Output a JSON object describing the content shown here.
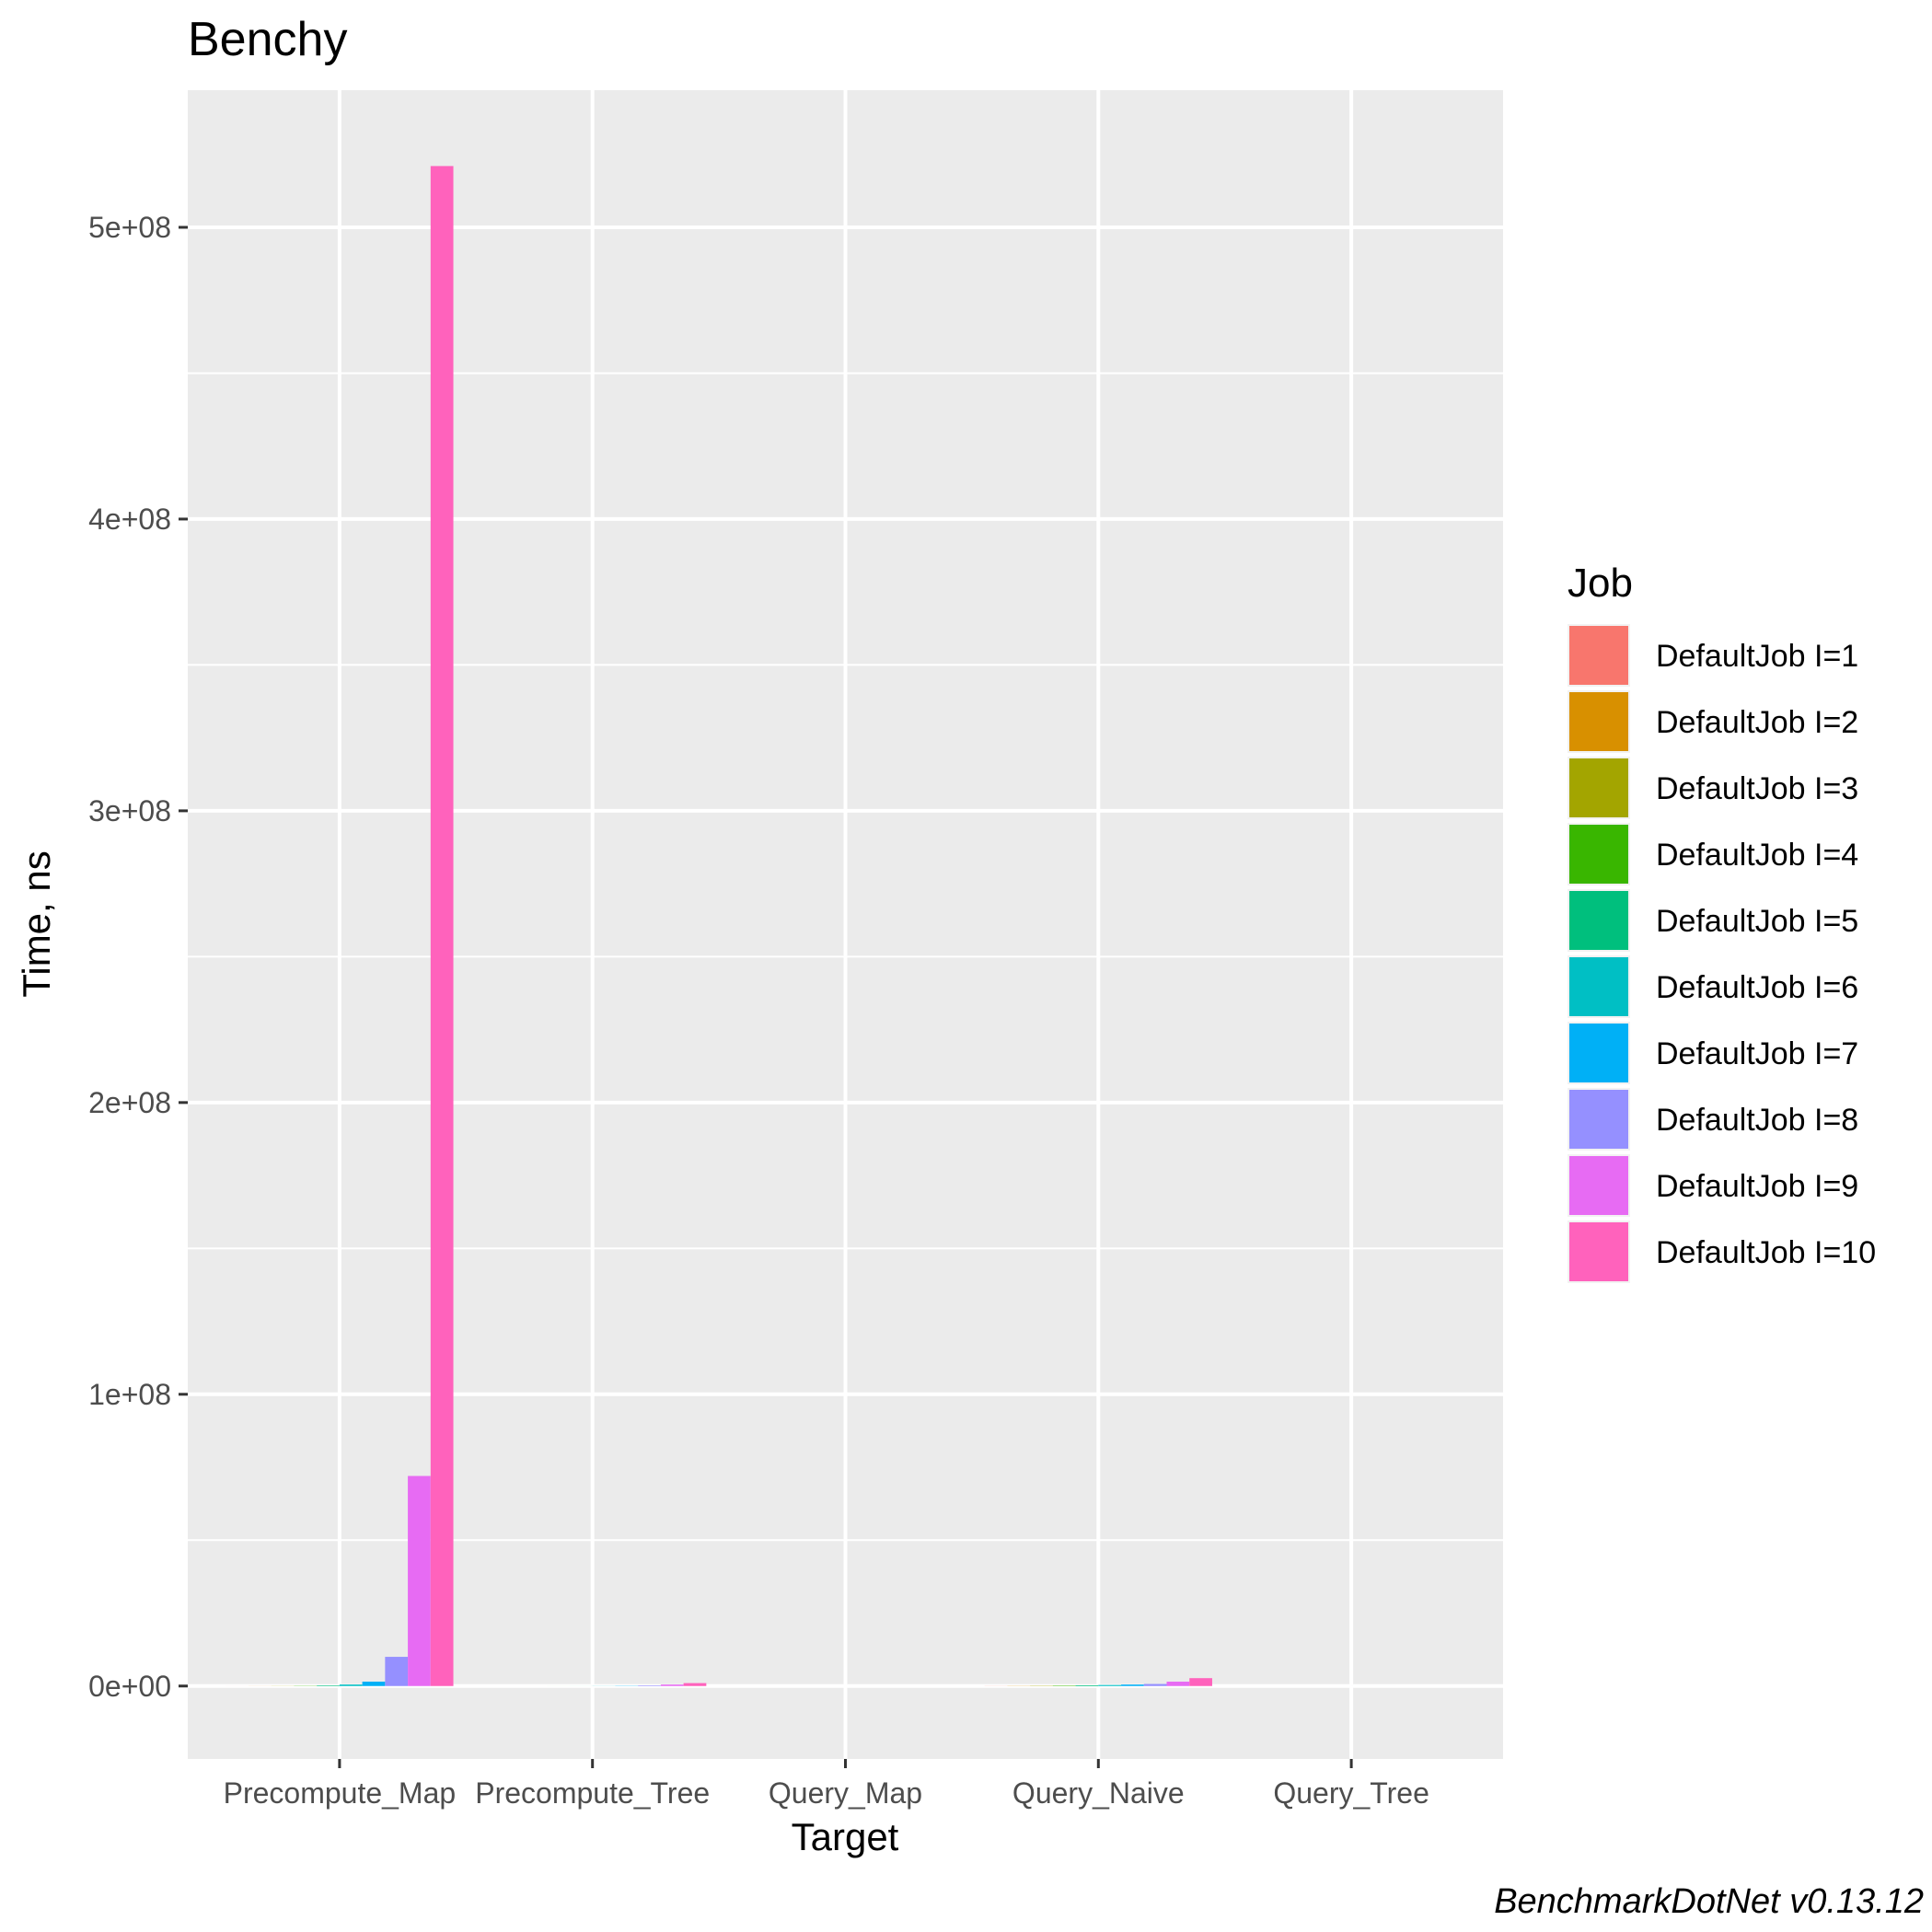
{
  "chart_data": {
    "type": "bar",
    "title": "Benchy",
    "xlabel": "Target",
    "ylabel": "Time, ns",
    "caption": "BenchmarkDotNet v0.13.12",
    "categories": [
      "Precompute_Map",
      "Precompute_Tree",
      "Query_Map",
      "Query_Naive",
      "Query_Tree"
    ],
    "y_ticks": [
      0,
      100000000,
      200000000,
      300000000,
      400000000,
      500000000
    ],
    "y_tick_labels": [
      "0e+00",
      "1e+08",
      "2e+08",
      "3e+08",
      "4e+08",
      "5e+08"
    ],
    "ylim": [
      -25000000,
      547000000
    ],
    "grid": true,
    "legend": {
      "title": "Job",
      "position": "right"
    },
    "series": [
      {
        "name": "DefaultJob I=1",
        "color": "#F8766D",
        "values": [
          10000,
          500,
          100,
          30000,
          300
        ]
      },
      {
        "name": "DefaultJob I=2",
        "color": "#D89000",
        "values": [
          20000,
          1000,
          200,
          60000,
          500
        ]
      },
      {
        "name": "DefaultJob I=3",
        "color": "#A3A500",
        "values": [
          40000,
          2000,
          300,
          100000,
          800
        ]
      },
      {
        "name": "DefaultJob I=4",
        "color": "#39B600",
        "values": [
          80000,
          5000,
          400,
          150000,
          1200
        ]
      },
      {
        "name": "DefaultJob I=5",
        "color": "#00BF7D",
        "values": [
          200000,
          10000,
          500,
          250000,
          1500
        ]
      },
      {
        "name": "DefaultJob I=6",
        "color": "#00BFC4",
        "values": [
          500000,
          30000,
          600,
          350000,
          2000
        ]
      },
      {
        "name": "DefaultJob I=7",
        "color": "#00B0F6",
        "values": [
          1500000,
          80000,
          700,
          500000,
          2500
        ]
      },
      {
        "name": "DefaultJob I=8",
        "color": "#9590FF",
        "values": [
          10000000,
          200000,
          800,
          700000,
          3000
        ]
      },
      {
        "name": "DefaultJob I=9",
        "color": "#E76BF3",
        "values": [
          72000000,
          500000,
          900,
          1500000,
          3500
        ]
      },
      {
        "name": "DefaultJob I=10",
        "color": "#FF62BC",
        "values": [
          521000000,
          1000000,
          1000,
          2700000,
          4000
        ]
      }
    ]
  }
}
